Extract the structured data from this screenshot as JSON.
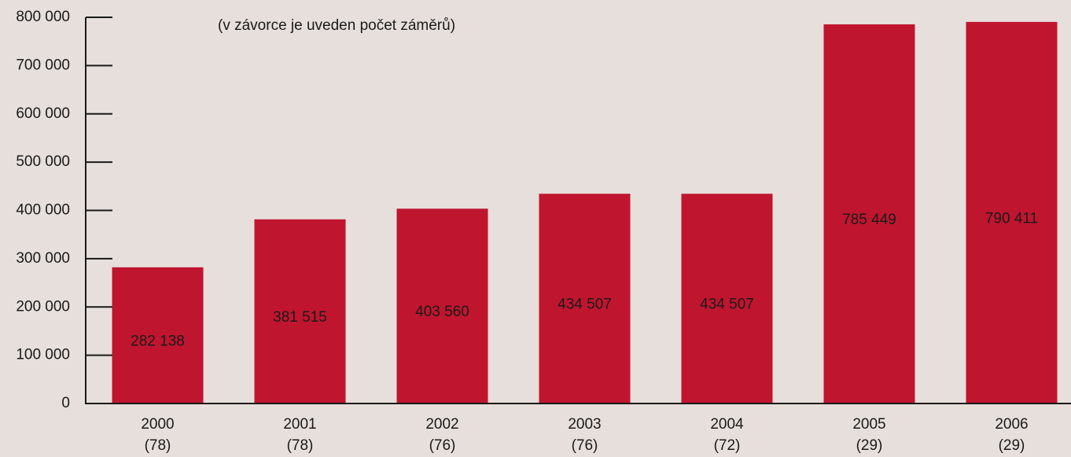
{
  "chart_data": {
    "type": "bar",
    "annotation": "(v závorce je uveden počet záměrů)",
    "categories": [
      "2000",
      "2001",
      "2002",
      "2003",
      "2004",
      "2005",
      "2006"
    ],
    "category_sublabels": [
      "(78)",
      "(78)",
      "(76)",
      "(76)",
      "(72)",
      "(29)",
      "(29)"
    ],
    "values": [
      282138,
      381515,
      403560,
      434507,
      434507,
      785449,
      790411
    ],
    "value_labels": [
      "282 138",
      "381 515",
      "403 560",
      "434 507",
      "434 507",
      "785 449",
      "790 411"
    ],
    "color": "#c0152f",
    "ylim": [
      0,
      800000
    ],
    "yticks": [
      0,
      {
        "value": 100000,
        "label": "100 000"
      },
      {
        "value": 200000,
        "label": "200 000"
      },
      {
        "value": 300000,
        "label": "300 000"
      },
      {
        "value": 400000,
        "label": "400 000"
      },
      {
        "value": 500000,
        "label": "500 000"
      },
      {
        "value": 600000,
        "label": "600 000"
      },
      {
        "value": 700000,
        "label": "700 000"
      },
      {
        "value": 800000,
        "label": "800 000"
      }
    ]
  }
}
